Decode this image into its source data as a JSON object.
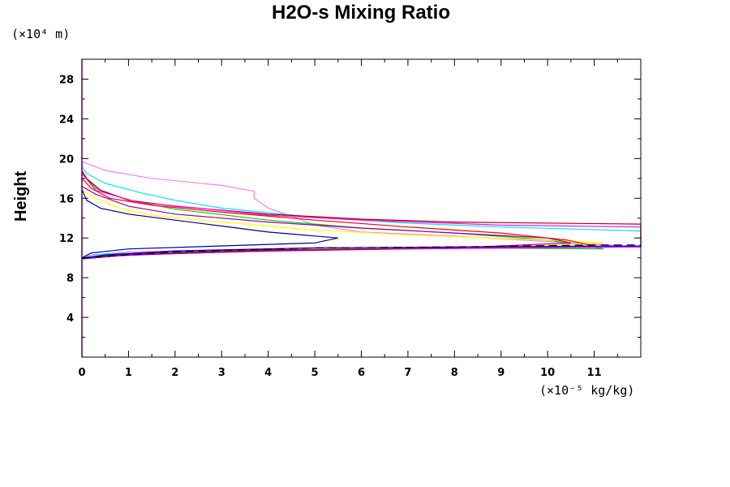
{
  "chart_data": {
    "type": "line",
    "title": "H2O-s Mixing Ratio",
    "xlabel": "",
    "ylabel": "Height",
    "x_unit": "(×10⁻⁵ kg/kg)",
    "y_unit": "(×10⁴ m)",
    "xlim": [
      0,
      12
    ],
    "ylim": [
      0,
      30
    ],
    "x_ticks": [
      0,
      1,
      2,
      3,
      4,
      5,
      6,
      7,
      8,
      9,
      10,
      11
    ],
    "y_ticks": [
      4,
      8,
      12,
      16,
      20,
      24,
      28
    ],
    "series": [
      {
        "name": "profile-violet",
        "color": "#ee82ee",
        "points": [
          [
            0,
            10.0
          ],
          [
            0.2,
            10.3
          ],
          [
            1,
            10.6
          ],
          [
            4,
            10.8
          ],
          [
            8,
            11.0
          ],
          [
            12,
            11.1
          ],
          [
            8,
            12.2
          ],
          [
            6,
            12.6
          ],
          [
            5,
            13.3
          ],
          [
            4.5,
            14.2
          ],
          [
            4,
            15.0
          ],
          [
            3.7,
            16.0
          ],
          [
            3.7,
            16.7
          ],
          [
            3,
            17.3
          ],
          [
            1.5,
            18.0
          ],
          [
            0.5,
            18.8
          ],
          [
            0,
            19.7
          ]
        ]
      },
      {
        "name": "profile-cyan",
        "color": "#00e5e5",
        "points": [
          [
            0,
            10.0
          ],
          [
            0.5,
            10.4
          ],
          [
            3,
            10.7
          ],
          [
            8,
            11.0
          ],
          [
            12,
            11.1
          ],
          [
            12,
            12.7
          ],
          [
            9,
            13.1
          ],
          [
            7,
            13.5
          ],
          [
            5,
            14.1
          ],
          [
            3,
            15.0
          ],
          [
            2,
            15.8
          ],
          [
            1.3,
            16.5
          ],
          [
            0.5,
            17.5
          ],
          [
            0.1,
            18.5
          ],
          [
            0,
            19.2
          ]
        ]
      },
      {
        "name": "profile-green",
        "color": "#00cc00",
        "points": [
          [
            0,
            10.0
          ],
          [
            0.6,
            10.3
          ],
          [
            3,
            10.7
          ],
          [
            8,
            11.0
          ],
          [
            11.2,
            10.9
          ],
          [
            10,
            11.8
          ],
          [
            8,
            12.5
          ],
          [
            6,
            13.0
          ],
          [
            4,
            13.8
          ],
          [
            2,
            14.9
          ],
          [
            1,
            15.8
          ],
          [
            0.3,
            17.0
          ],
          [
            0.1,
            18.0
          ],
          [
            0,
            18.7
          ]
        ]
      },
      {
        "name": "profile-yellow",
        "color": "#ffff00",
        "points": [
          [
            0,
            10.0
          ],
          [
            0.8,
            10.3
          ],
          [
            4,
            10.8
          ],
          [
            9,
            11.1
          ],
          [
            11.2,
            11.5
          ],
          [
            10,
            11.8
          ],
          [
            7,
            12.3
          ],
          [
            5,
            12.8
          ],
          [
            3,
            13.6
          ],
          [
            1.5,
            14.3
          ],
          [
            0.8,
            15.0
          ],
          [
            0.3,
            16.0
          ],
          [
            0,
            16.8
          ]
        ]
      },
      {
        "name": "profile-red",
        "color": "#ff0000",
        "points": [
          [
            0,
            9.9
          ],
          [
            1,
            10.3
          ],
          [
            5,
            10.8
          ],
          [
            9,
            11.0
          ],
          [
            11,
            11.2
          ],
          [
            10.4,
            11.8
          ],
          [
            10,
            12.0
          ],
          [
            9,
            12.5
          ],
          [
            7,
            13.1
          ],
          [
            5,
            13.8
          ],
          [
            3,
            14.6
          ],
          [
            1.5,
            15.3
          ],
          [
            0.6,
            16.0
          ],
          [
            0.2,
            17.0
          ],
          [
            0,
            18.0
          ]
        ]
      },
      {
        "name": "profile-darkred",
        "color": "#aa0000",
        "points": [
          [
            0,
            10.0
          ],
          [
            1,
            10.4
          ],
          [
            4,
            10.8
          ],
          [
            8,
            11.0
          ],
          [
            12,
            11.1
          ],
          [
            12,
            13.4
          ],
          [
            8,
            13.6
          ],
          [
            6,
            13.9
          ],
          [
            4,
            14.4
          ],
          [
            2,
            15.2
          ],
          [
            1,
            15.8
          ],
          [
            0.4,
            16.8
          ],
          [
            0.1,
            18.0
          ],
          [
            0,
            18.8
          ]
        ]
      },
      {
        "name": "profile-magenta",
        "color": "#ff00ff",
        "points": [
          [
            0,
            9.9
          ],
          [
            0.8,
            10.2
          ],
          [
            3,
            10.6
          ],
          [
            7,
            10.9
          ],
          [
            12,
            11.1
          ],
          [
            12,
            13.1
          ],
          [
            9,
            13.3
          ],
          [
            6,
            13.8
          ],
          [
            4,
            14.3
          ],
          [
            2.5,
            15.0
          ],
          [
            1.2,
            15.6
          ],
          [
            0.3,
            16.8
          ],
          [
            0,
            18.5
          ]
        ]
      },
      {
        "name": "profile-darkmagenta",
        "color": "#990099",
        "points": [
          [
            0,
            9.9
          ],
          [
            1,
            10.3
          ],
          [
            4,
            10.7
          ],
          [
            8,
            11.0
          ],
          [
            10.5,
            11.5
          ],
          [
            10,
            12.0
          ],
          [
            8,
            12.5
          ],
          [
            6,
            13.0
          ],
          [
            4,
            13.6
          ],
          [
            2,
            14.4
          ],
          [
            1,
            15.2
          ],
          [
            0.3,
            16.4
          ],
          [
            0,
            17.2
          ]
        ]
      },
      {
        "name": "profile-navy",
        "color": "#00008b",
        "points": [
          [
            0,
            10.0
          ],
          [
            0.2,
            10.5
          ],
          [
            1,
            10.9
          ],
          [
            3,
            11.2
          ],
          [
            5,
            11.5
          ],
          [
            5.5,
            12.0
          ],
          [
            5,
            12.2
          ],
          [
            4,
            12.6
          ],
          [
            3,
            13.2
          ],
          [
            2,
            13.8
          ],
          [
            1,
            14.4
          ],
          [
            0.4,
            15.0
          ],
          [
            0.1,
            15.8
          ],
          [
            0,
            16.9
          ]
        ]
      },
      {
        "name": "profile-blue",
        "color": "#0000ff",
        "points": [
          [
            0,
            9.9
          ],
          [
            0.5,
            10.3
          ],
          [
            2,
            10.7
          ],
          [
            5,
            11.0
          ],
          [
            8,
            11.1
          ],
          [
            12,
            11.2
          ]
        ]
      },
      {
        "name": "profile-black-dashed",
        "color": "#000000",
        "dashed": true,
        "points": [
          [
            0,
            10.0
          ],
          [
            2,
            10.6
          ],
          [
            5,
            11.0
          ],
          [
            8,
            11.1
          ],
          [
            11,
            11.3
          ],
          [
            12,
            11.3
          ]
        ]
      }
    ]
  }
}
